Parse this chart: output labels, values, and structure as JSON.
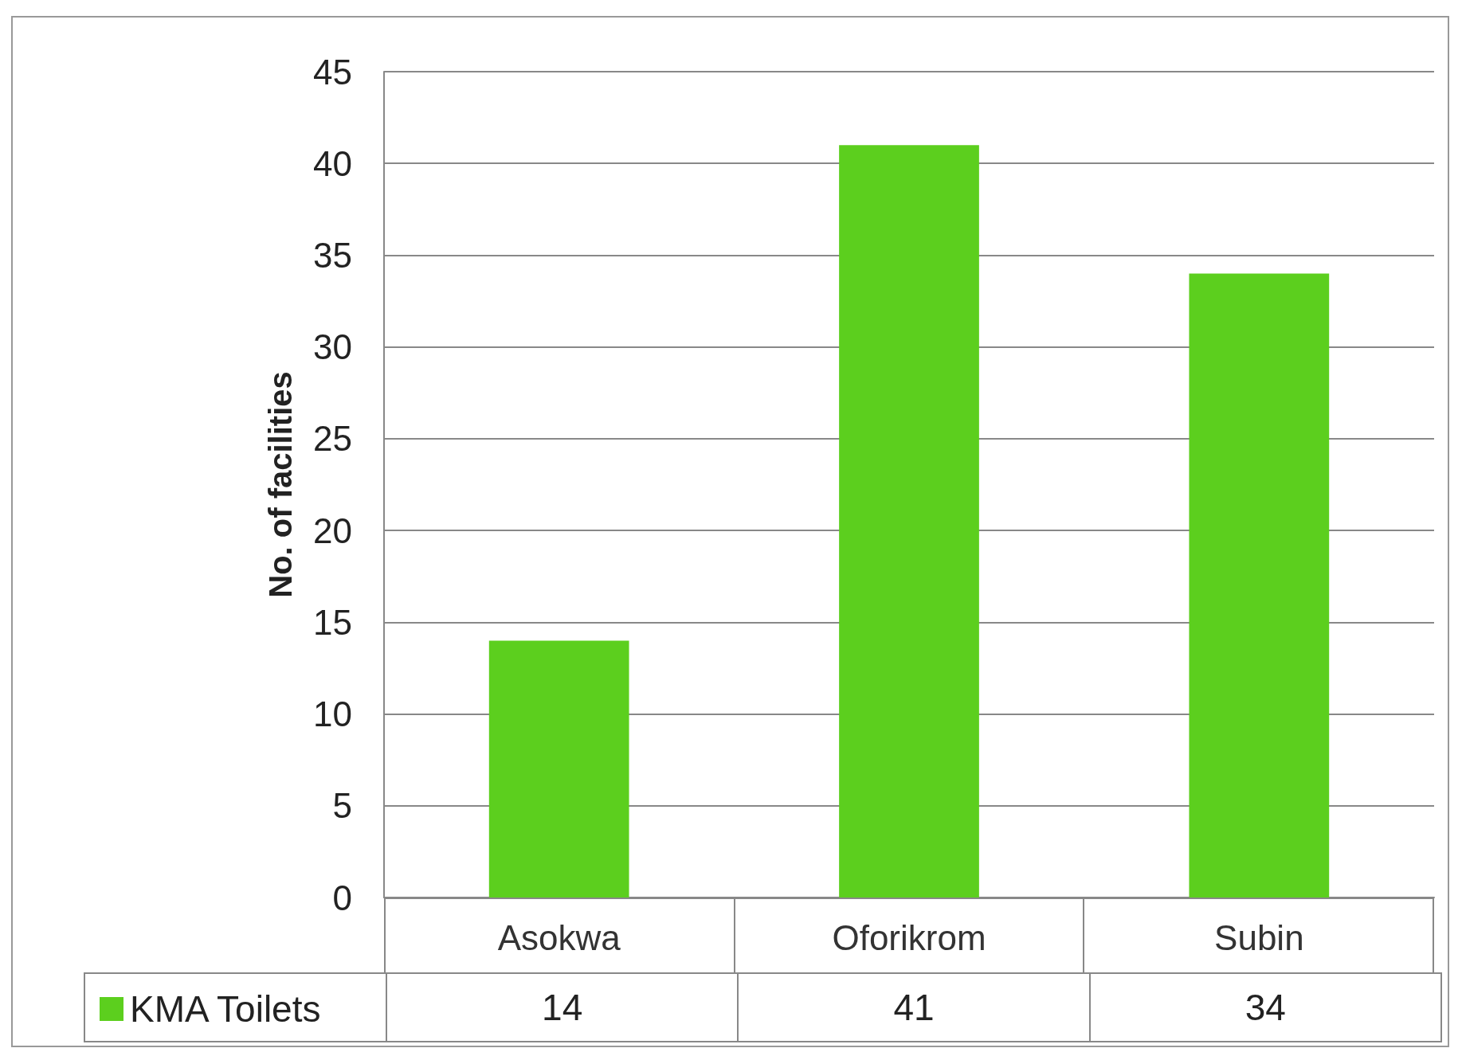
{
  "chart_data": {
    "type": "bar",
    "ylabel": "No. of facilities",
    "categories": [
      "Asokwa",
      "Oforikrom",
      "Subin"
    ],
    "series": [
      {
        "name": "KMA Toilets",
        "color": "#5ccf1e",
        "values": [
          14,
          41,
          34
        ]
      }
    ],
    "ylim": [
      0,
      45
    ],
    "yticks": [
      0,
      5,
      10,
      15,
      20,
      25,
      30,
      35,
      40,
      45
    ],
    "grid": "y",
    "legend": "bottom",
    "data_labels": true
  }
}
